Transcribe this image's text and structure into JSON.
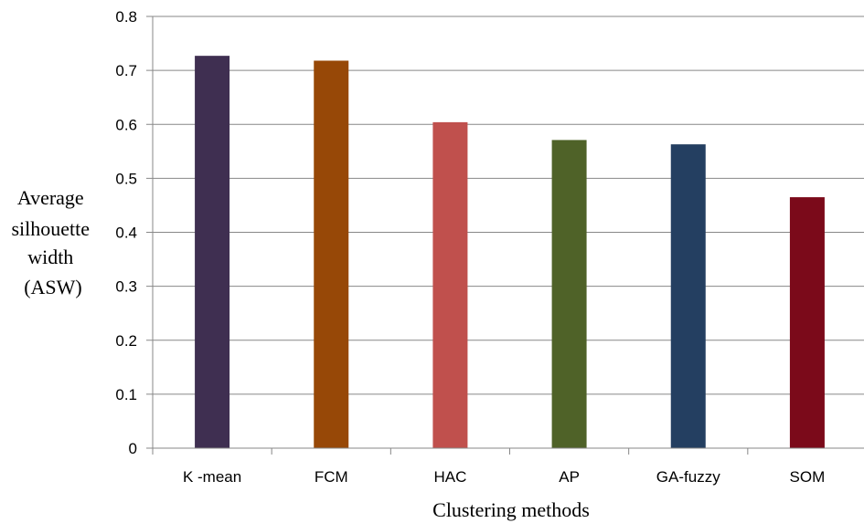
{
  "chart_data": {
    "type": "bar",
    "categories": [
      "K -mean",
      "FCM",
      "HAC",
      "AP",
      "GA-fuzzy",
      "SOM"
    ],
    "values": [
      0.727,
      0.718,
      0.604,
      0.571,
      0.563,
      0.465
    ],
    "colors": [
      "#3f2f51",
      "#974807",
      "#c0504d",
      "#4f6228",
      "#243f61",
      "#7b0a1a"
    ],
    "title": "",
    "xlabel": "Clustering methods",
    "ylabel_lines": [
      "Average",
      "silhouette",
      "width",
      "(ASW)"
    ],
    "ylim": [
      0,
      0.8
    ],
    "yticks": [
      "0",
      "0.1",
      "0.2",
      "0.3",
      "0.4",
      "0.5",
      "0.6",
      "0.7",
      "0.8"
    ],
    "grid": true,
    "legend": "none"
  }
}
